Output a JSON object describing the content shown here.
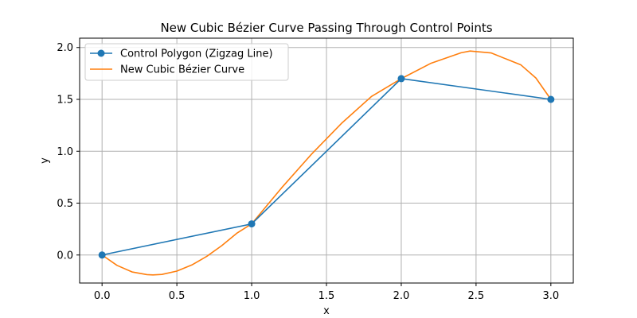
{
  "chart_data": {
    "type": "line",
    "title": "New Cubic Bézier Curve Passing Through Control Points",
    "xlabel": "x",
    "ylabel": "y",
    "xlim": [
      -0.15,
      3.15
    ],
    "ylim": [
      -0.27,
      2.09
    ],
    "grid": true,
    "legend_position": "top-left",
    "xticks": [
      {
        "value": 0.0,
        "label": "0.0"
      },
      {
        "value": 0.5,
        "label": "0.5"
      },
      {
        "value": 1.0,
        "label": "1.0"
      },
      {
        "value": 1.5,
        "label": "1.5"
      },
      {
        "value": 2.0,
        "label": "2.0"
      },
      {
        "value": 2.5,
        "label": "2.5"
      },
      {
        "value": 3.0,
        "label": "3.0"
      }
    ],
    "yticks": [
      {
        "value": 0.0,
        "label": "0.0"
      },
      {
        "value": 0.5,
        "label": "0.5"
      },
      {
        "value": 1.0,
        "label": "1.0"
      },
      {
        "value": 1.5,
        "label": "1.5"
      },
      {
        "value": 2.0,
        "label": "2.0"
      }
    ],
    "series": [
      {
        "name": "Control Polygon (Zigzag Line)",
        "color": "#1f77b4",
        "marker": "circle",
        "x": [
          0,
          1,
          2,
          3
        ],
        "y": [
          0,
          0.3,
          1.7,
          1.5
        ]
      },
      {
        "name": "New Cubic Bézier Curve",
        "color": "#ff7f0e",
        "marker": "none",
        "x": [
          0.0,
          0.1,
          0.2,
          0.3,
          0.34,
          0.4,
          0.5,
          0.6,
          0.7,
          0.8,
          0.9,
          1.0,
          1.2,
          1.4,
          1.6,
          1.8,
          2.0,
          2.2,
          2.4,
          2.46,
          2.6,
          2.8,
          2.9,
          3.0
        ],
        "y": [
          0.0,
          -0.1,
          -0.163,
          -0.189,
          -0.192,
          -0.187,
          -0.155,
          -0.096,
          -0.013,
          0.09,
          0.209,
          0.3,
          0.647,
          0.972,
          1.268,
          1.527,
          1.7,
          1.849,
          1.949,
          1.966,
          1.948,
          1.832,
          1.706,
          1.5
        ]
      }
    ]
  }
}
